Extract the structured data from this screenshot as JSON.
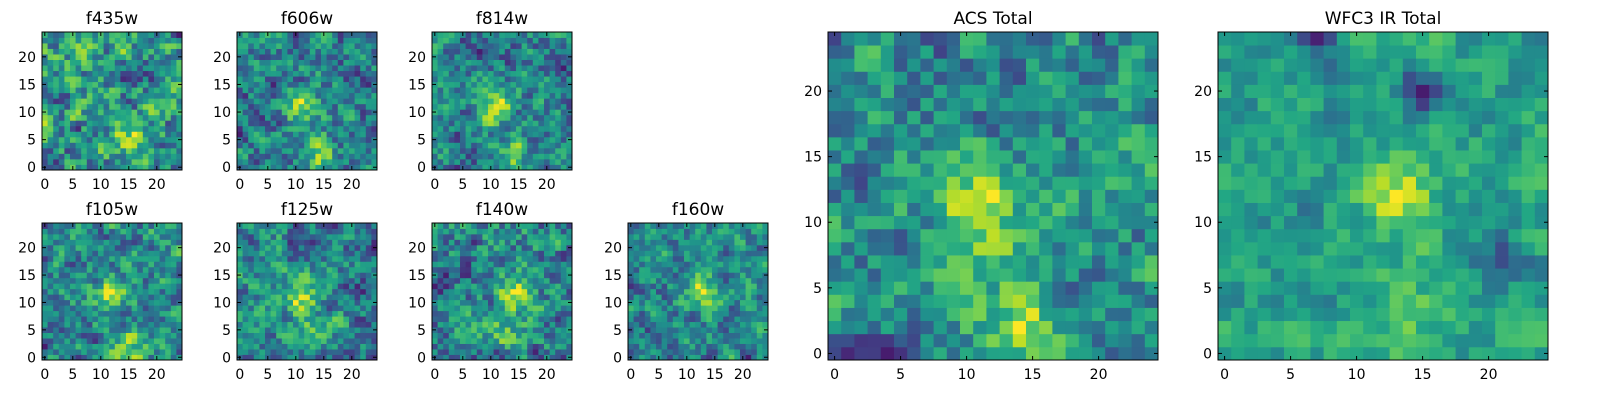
{
  "chart_data": [
    {
      "type": "heatmap",
      "title": "f435w",
      "grid": [
        25,
        25
      ],
      "colormap": "viridis",
      "xticks": [
        "0",
        "5",
        "10",
        "15",
        "20"
      ],
      "yticks": [
        "0",
        "5",
        "10",
        "15",
        "20"
      ],
      "seed": 11,
      "blobs": [
        [
          15,
          5,
          0.35
        ]
      ]
    },
    {
      "type": "heatmap",
      "title": "f606w",
      "grid": [
        25,
        25
      ],
      "colormap": "viridis",
      "xticks": [
        "0",
        "5",
        "10",
        "15",
        "20"
      ],
      "yticks": [
        "0",
        "5",
        "10",
        "15",
        "20"
      ],
      "seed": 23,
      "blobs": [
        [
          11,
          11,
          0.5
        ],
        [
          14,
          2,
          0.4
        ]
      ]
    },
    {
      "type": "heatmap",
      "title": "f814w",
      "grid": [
        25,
        25
      ],
      "colormap": "viridis",
      "xticks": [
        "0",
        "5",
        "10",
        "15",
        "20"
      ],
      "yticks": [
        "0",
        "5",
        "10",
        "15",
        "20"
      ],
      "seed": 37,
      "blobs": [
        [
          11,
          11,
          0.55
        ],
        [
          14,
          2,
          0.35
        ]
      ]
    },
    {
      "type": "heatmap",
      "title": "f105w",
      "grid": [
        25,
        25
      ],
      "colormap": "viridis",
      "xticks": [
        "0",
        "5",
        "10",
        "15",
        "20"
      ],
      "yticks": [
        "0",
        "5",
        "10",
        "15",
        "20"
      ],
      "seed": 41,
      "blobs": [
        [
          12,
          12,
          0.45
        ],
        [
          15,
          2,
          0.35
        ]
      ]
    },
    {
      "type": "heatmap",
      "title": "f125w",
      "grid": [
        25,
        25
      ],
      "colormap": "viridis",
      "xticks": [
        "0",
        "5",
        "10",
        "15",
        "20"
      ],
      "yticks": [
        "0",
        "5",
        "10",
        "15",
        "20"
      ],
      "seed": 53,
      "blobs": [
        [
          11,
          11,
          0.45
        ],
        [
          12,
          4,
          0.3
        ]
      ]
    },
    {
      "type": "heatmap",
      "title": "f140w",
      "grid": [
        25,
        25
      ],
      "colormap": "viridis",
      "xticks": [
        "0",
        "5",
        "10",
        "15",
        "20"
      ],
      "yticks": [
        "0",
        "5",
        "10",
        "15",
        "20"
      ],
      "seed": 67,
      "blobs": [
        [
          15,
          12,
          0.45
        ],
        [
          12,
          5,
          0.3
        ]
      ]
    },
    {
      "type": "heatmap",
      "title": "f160w",
      "grid": [
        25,
        25
      ],
      "colormap": "viridis",
      "xticks": [
        "0",
        "5",
        "10",
        "15",
        "20"
      ],
      "yticks": [
        "0",
        "5",
        "10",
        "15",
        "20"
      ],
      "seed": 79,
      "blobs": [
        [
          13,
          12,
          0.5
        ]
      ]
    },
    {
      "type": "heatmap",
      "title": "ACS Total",
      "grid": [
        25,
        25
      ],
      "colormap": "viridis",
      "xticks": [
        "0",
        "5",
        "10",
        "15",
        "20"
      ],
      "yticks": [
        "0",
        "5",
        "10",
        "15",
        "20"
      ],
      "seed": 97,
      "blobs": [
        [
          11,
          11,
          0.55
        ],
        [
          14,
          2,
          0.5
        ]
      ]
    },
    {
      "type": "heatmap",
      "title": "WFC3 IR Total",
      "grid": [
        25,
        25
      ],
      "colormap": "viridis",
      "xticks": [
        "0",
        "5",
        "10",
        "15",
        "20"
      ],
      "yticks": [
        "0",
        "5",
        "10",
        "15",
        "20"
      ],
      "seed": 103,
      "blobs": [
        [
          13,
          12,
          0.65
        ],
        [
          14,
          3,
          0.35
        ]
      ],
      "holes": [
        [
          7,
          24,
          0.6
        ],
        [
          15,
          20,
          0.65
        ],
        [
          21,
          7,
          0.5
        ]
      ]
    }
  ]
}
